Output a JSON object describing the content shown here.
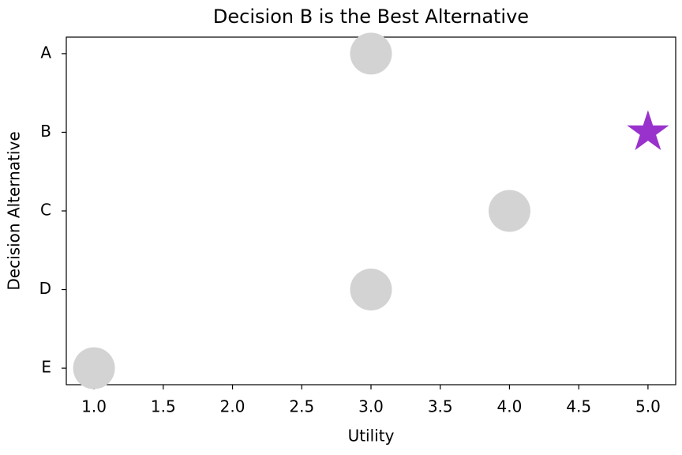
{
  "chart_data": {
    "type": "scatter",
    "title": "Decision B is the Best Alternative",
    "x_label": "Utility",
    "y_label": "Decision Alternative",
    "categories": [
      "A",
      "B",
      "C",
      "D",
      "E"
    ],
    "values": [
      3,
      5,
      4,
      3,
      1
    ],
    "colors": [
      "#d3d3d3",
      "#9932cc",
      "#d3d3d3",
      "#d3d3d3",
      "#d3d3d3"
    ],
    "markers": [
      "circle",
      "star",
      "circle",
      "circle",
      "circle"
    ],
    "xlim": [
      0.8,
      5.2
    ],
    "xticks": [
      {
        "value": 1,
        "label": "1.0"
      },
      {
        "value": 1.5,
        "label": "1.5"
      },
      {
        "value": 2,
        "label": "2.0"
      },
      {
        "value": 2.5,
        "label": "2.5"
      },
      {
        "value": 3,
        "label": "3.0"
      },
      {
        "value": 3.5,
        "label": "3.5"
      },
      {
        "value": 4,
        "label": "4.0"
      },
      {
        "value": 4.5,
        "label": "4.5"
      },
      {
        "value": 5,
        "label": "5.0"
      }
    ],
    "grid": false
  }
}
